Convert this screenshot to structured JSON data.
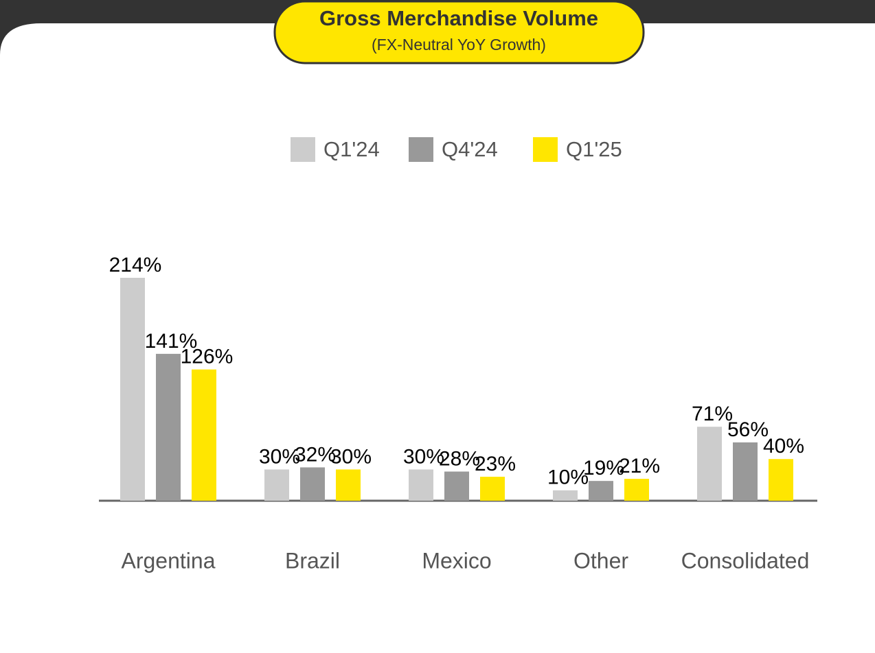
{
  "chart_data": {
    "type": "bar",
    "title": "Gross Merchandise Volume",
    "subtitle": "(FX-Neutral YoY Growth)",
    "categories": [
      "Argentina",
      "Brazil",
      "Mexico",
      "Other",
      "Consolidated"
    ],
    "series": [
      {
        "name": "Q1'24",
        "color": "#cccccc",
        "values": [
          214,
          30,
          30,
          10,
          71
        ],
        "value_labels": [
          "214%",
          "30%",
          "30%",
          "10%",
          "71%"
        ]
      },
      {
        "name": "Q4'24",
        "color": "#999999",
        "values": [
          141,
          32,
          28,
          19,
          56
        ],
        "value_labels": [
          "141%",
          "32%",
          "28%",
          "19%",
          "56%"
        ]
      },
      {
        "name": "Q1'25",
        "color": "#ffe600",
        "values": [
          126,
          30,
          23,
          21,
          40
        ],
        "value_labels": [
          "126%",
          "30%",
          "23%",
          "21%",
          "40%"
        ]
      }
    ],
    "legend": "top"
  }
}
